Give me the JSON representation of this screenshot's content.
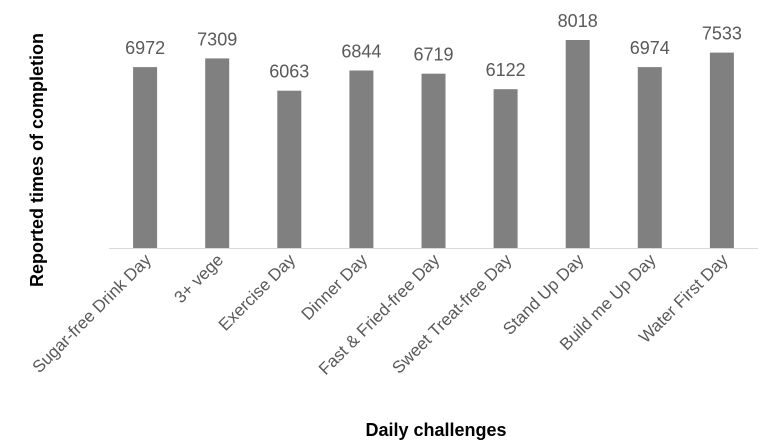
{
  "chart_data": {
    "type": "bar",
    "title": "",
    "xlabel": "Daily challenges",
    "ylabel": "Reported times of completion",
    "categories": [
      "Sugar-free Drink Day",
      "3+  vege",
      "Exercise Day",
      "Dinner Day",
      "Fast & Fried-free Day",
      "Sweet Treat-free Day",
      "Stand Up Day",
      "Build me Up Day",
      "Water First Day"
    ],
    "values": [
      6972,
      7309,
      6063,
      6844,
      6719,
      6122,
      8018,
      6974,
      7533
    ],
    "data_labels": [
      "6972",
      "7309",
      "6063",
      "6844",
      "6719",
      "6122",
      "8018",
      "6974",
      "7533"
    ],
    "ylim": [
      0,
      8018
    ],
    "grid": false,
    "legend": "none",
    "colors": {
      "bar": "#808080",
      "axis": "#d9d9d9",
      "label": "#595959"
    }
  }
}
